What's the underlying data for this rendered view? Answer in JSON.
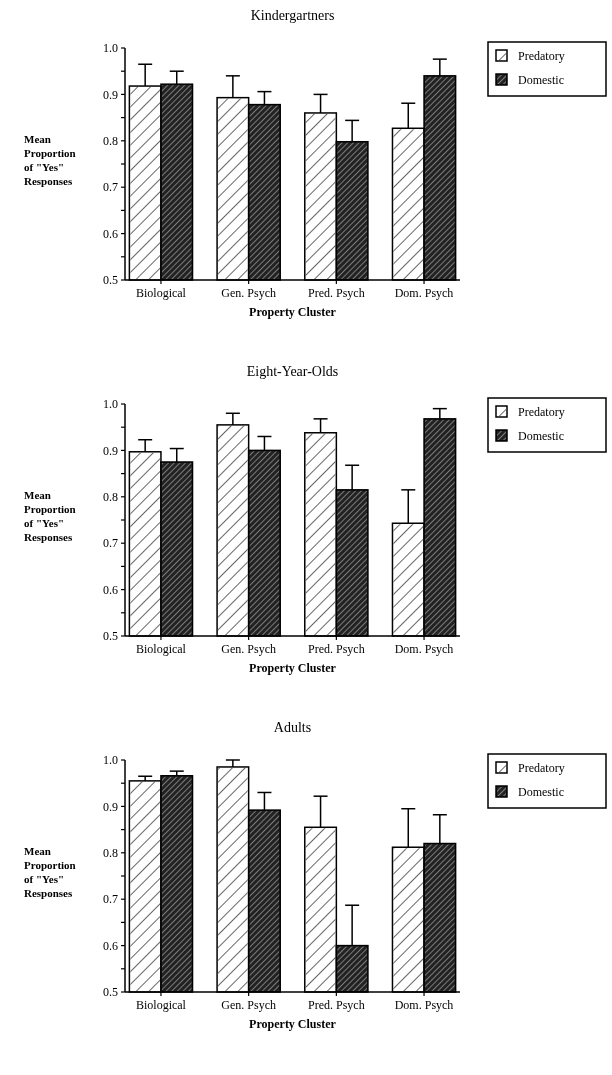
{
  "chart_data": [
    {
      "type": "bar",
      "title": "Kindergartners",
      "xlabel": "Property Cluster",
      "ylabel": "Mean Proportion of \"Yes\" Responses",
      "categories": [
        "Biological",
        "Gen. Psych",
        "Pred. Psych",
        "Dom. Psych"
      ],
      "ylim": [
        0.5,
        1.0
      ],
      "yticks": [
        0.5,
        {
          "value": 0.55,
          "label": null
        },
        0.6,
        {
          "value": 0.65,
          "label": null
        },
        0.7,
        {
          "value": 0.75,
          "label": null
        },
        0.8,
        {
          "value": 0.85,
          "label": null
        },
        0.9,
        {
          "value": 0.95,
          "label": null
        },
        {
          "value": 1.0,
          "label": "1.0"
        }
      ],
      "legend": "top right",
      "grid": false,
      "series": [
        {
          "name": "Predatory",
          "color": "#ffffff",
          "values": [
            0.918,
            0.893,
            0.86,
            0.827
          ],
          "errors": [
            [
              0.918,
              0.965
            ],
            [
              0.893,
              0.94
            ],
            [
              0.86,
              0.9
            ],
            [
              0.827,
              0.881
            ]
          ]
        },
        {
          "name": "Domestic",
          "color": "#222222",
          "values": [
            0.922,
            0.878,
            0.798,
            0.94
          ],
          "errors": [
            [
              0.922,
              0.95
            ],
            [
              0.878,
              0.906
            ],
            [
              0.798,
              0.844
            ],
            [
              0.94,
              0.976
            ]
          ]
        }
      ]
    },
    {
      "type": "bar",
      "title": "Eight-Year-Olds",
      "xlabel": "Property Cluster",
      "ylabel": "Mean Proportion of \"Yes\" Responses",
      "categories": [
        "Biological",
        "Gen. Psych",
        "Pred. Psych",
        "Dom. Psych"
      ],
      "ylim": [
        0.5,
        1.0
      ],
      "yticks": [
        0.5,
        {
          "value": 0.55,
          "label": null
        },
        0.6,
        {
          "value": 0.65,
          "label": null
        },
        0.7,
        {
          "value": 0.75,
          "label": null
        },
        0.8,
        {
          "value": 0.85,
          "label": null
        },
        0.9,
        {
          "value": 0.95,
          "label": null
        },
        {
          "value": 1.0,
          "label": "1.0"
        }
      ],
      "legend": "top right",
      "grid": false,
      "series": [
        {
          "name": "Predatory",
          "color": "#ffffff",
          "values": [
            0.897,
            0.955,
            0.938,
            0.743
          ],
          "errors": [
            [
              0.897,
              0.923
            ],
            [
              0.955,
              0.98
            ],
            [
              0.938,
              0.968
            ],
            [
              0.743,
              0.815
            ]
          ]
        },
        {
          "name": "Domestic",
          "color": "#222222",
          "values": [
            0.875,
            0.9,
            0.815,
            0.968
          ],
          "errors": [
            [
              0.875,
              0.904
            ],
            [
              0.9,
              0.93
            ],
            [
              0.815,
              0.868
            ],
            [
              0.968,
              0.99
            ]
          ]
        }
      ]
    },
    {
      "type": "bar",
      "title": "Adults",
      "xlabel": "Property Cluster",
      "ylabel": "Mean Proportion of \"Yes\" Responses",
      "categories": [
        "Biological",
        "Gen. Psych",
        "Pred. Psych",
        "Dom. Psych"
      ],
      "ylim": [
        0.5,
        1.0
      ],
      "yticks": [
        0.5,
        {
          "value": 0.55,
          "label": null
        },
        0.6,
        {
          "value": 0.65,
          "label": null
        },
        0.7,
        {
          "value": 0.75,
          "label": null
        },
        0.8,
        {
          "value": 0.85,
          "label": null
        },
        0.9,
        {
          "value": 0.95,
          "label": null
        },
        {
          "value": 1.0,
          "label": "1.0"
        }
      ],
      "legend": "top right",
      "grid": false,
      "series": [
        {
          "name": "Predatory",
          "color": "#ffffff",
          "values": [
            0.955,
            0.985,
            0.855,
            0.812
          ],
          "errors": [
            [
              0.955,
              0.965
            ],
            [
              0.985,
              1.0
            ],
            [
              0.855,
              0.922
            ],
            [
              0.812,
              0.895
            ]
          ]
        },
        {
          "name": "Domestic",
          "color": "#222222",
          "values": [
            0.966,
            0.892,
            0.6,
            0.82
          ],
          "errors": [
            [
              0.966,
              0.976
            ],
            [
              0.892,
              0.93
            ],
            [
              0.6,
              0.687
            ],
            [
              0.82,
              0.882
            ]
          ]
        }
      ]
    }
  ]
}
